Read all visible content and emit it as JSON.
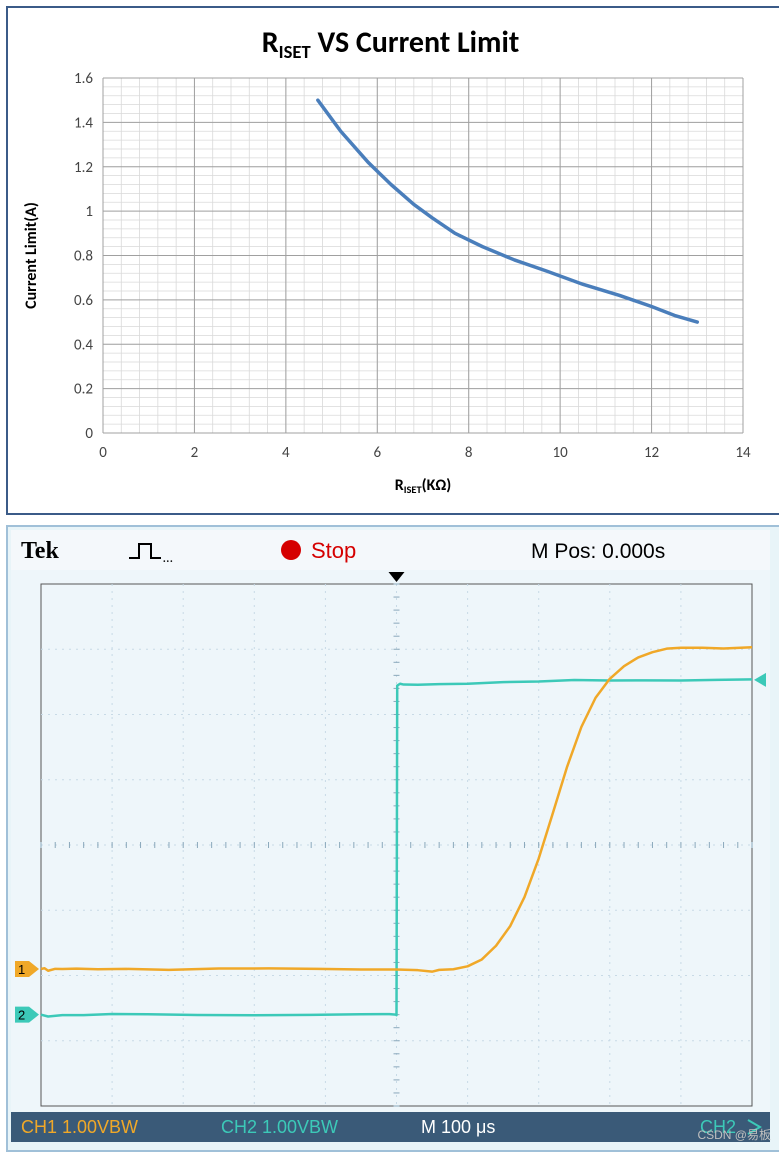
{
  "chart": {
    "type": "line",
    "title_prefix": "R",
    "title_sub": "ISET",
    "title_suffix": " VS Current Limit",
    "title_fontsize": 30,
    "title_weight": "bold",
    "xlabel_prefix": "R",
    "xlabel_sub": "ISET",
    "xlabel_suffix": "(KΩ)",
    "ylabel": "Current Limit(A)",
    "label_fontsize": 16,
    "label_weight": "bold",
    "xlim": [
      0,
      14
    ],
    "ylim": [
      0,
      1.6
    ],
    "xtick_step": 2,
    "ytick_step": 0.2,
    "minor_x_div": 5,
    "minor_y_div": 5,
    "tick_fontsize": 15,
    "series": {
      "color": "#4a7ebb",
      "width": 3.5,
      "points": [
        [
          4.7,
          1.5
        ],
        [
          5.2,
          1.36
        ],
        [
          5.8,
          1.22
        ],
        [
          6.3,
          1.12
        ],
        [
          6.8,
          1.03
        ],
        [
          7.2,
          0.97
        ],
        [
          7.7,
          0.9
        ],
        [
          8.3,
          0.84
        ],
        [
          9.0,
          0.78
        ],
        [
          9.7,
          0.73
        ],
        [
          10.5,
          0.67
        ],
        [
          11.3,
          0.62
        ],
        [
          12.0,
          0.57
        ],
        [
          12.5,
          0.53
        ],
        [
          13.0,
          0.5
        ]
      ]
    },
    "border_color": "#3b5b88",
    "grid_major_color": "#a0a0a0",
    "grid_minor_color": "#d9d9d9",
    "background": "#ffffff"
  },
  "scope": {
    "type": "oscilloscope",
    "brand": "Tek",
    "trigger_icon": "pulse",
    "state_label": "Stop",
    "state_color": "#d50000",
    "mpos_label": "M Pos: 0.000s",
    "header_fontsize": 20,
    "background": "#eef6fa",
    "grid_color": "#c8dae6",
    "divisions_x": 10,
    "divisions_y": 8,
    "ch1": {
      "label_num": "1",
      "label_footer": "CH1  1.00VBW",
      "color": "#f0a828",
      "marker_y_div": 5.9,
      "points": [
        [
          0.0,
          5.9
        ],
        [
          0.05,
          5.88
        ],
        [
          0.1,
          5.92
        ],
        [
          0.2,
          5.9
        ],
        [
          0.3,
          5.91
        ],
        [
          0.5,
          5.9
        ],
        [
          0.8,
          5.9
        ],
        [
          1.2,
          5.89
        ],
        [
          1.8,
          5.91
        ],
        [
          2.5,
          5.9
        ],
        [
          3.2,
          5.9
        ],
        [
          3.9,
          5.9
        ],
        [
          4.5,
          5.9
        ],
        [
          5.0,
          5.9
        ],
        [
          5.3,
          5.92
        ],
        [
          5.5,
          5.95
        ],
        [
          5.6,
          5.92
        ],
        [
          5.8,
          5.9
        ],
        [
          6.0,
          5.85
        ],
        [
          6.2,
          5.75
        ],
        [
          6.4,
          5.55
        ],
        [
          6.6,
          5.25
        ],
        [
          6.8,
          4.8
        ],
        [
          7.0,
          4.2
        ],
        [
          7.2,
          3.5
        ],
        [
          7.4,
          2.8
        ],
        [
          7.6,
          2.2
        ],
        [
          7.8,
          1.75
        ],
        [
          8.0,
          1.45
        ],
        [
          8.2,
          1.25
        ],
        [
          8.4,
          1.12
        ],
        [
          8.6,
          1.05
        ],
        [
          8.8,
          1.0
        ],
        [
          9.0,
          0.98
        ],
        [
          9.3,
          0.97
        ],
        [
          9.6,
          0.98
        ],
        [
          10.0,
          0.97
        ]
      ]
    },
    "ch2": {
      "label_num": "2",
      "label_footer": "CH2  1.00VBW",
      "color": "#3cc9b8",
      "marker_y_div": 6.6,
      "points": [
        [
          0.0,
          6.6
        ],
        [
          0.1,
          6.62
        ],
        [
          0.3,
          6.6
        ],
        [
          0.6,
          6.61
        ],
        [
          1.0,
          6.6
        ],
        [
          1.5,
          6.6
        ],
        [
          2.2,
          6.6
        ],
        [
          3.0,
          6.6
        ],
        [
          3.8,
          6.6
        ],
        [
          4.5,
          6.6
        ],
        [
          4.9,
          6.6
        ],
        [
          4.99,
          6.6
        ],
        [
          5.0,
          6.6
        ],
        [
          5.01,
          1.55
        ],
        [
          5.05,
          1.53
        ],
        [
          5.1,
          1.55
        ],
        [
          5.3,
          1.55
        ],
        [
          5.6,
          1.53
        ],
        [
          6.0,
          1.52
        ],
        [
          6.5,
          1.5
        ],
        [
          7.0,
          1.5
        ],
        [
          7.5,
          1.48
        ],
        [
          8.0,
          1.48
        ],
        [
          8.5,
          1.47
        ],
        [
          9.0,
          1.47
        ],
        [
          9.5,
          1.47
        ],
        [
          10.0,
          1.47
        ]
      ]
    },
    "right_arrow_color": "#3cc9b8",
    "right_arrow_y_div": 1.47,
    "timebase_label": "M 100 μs",
    "timebase_color": "#ffffff",
    "footer_right": "CH2",
    "footer_right_color": "#3cc9b8",
    "footer_bg": "#3a5a78"
  },
  "credit": "CSDN @易板"
}
